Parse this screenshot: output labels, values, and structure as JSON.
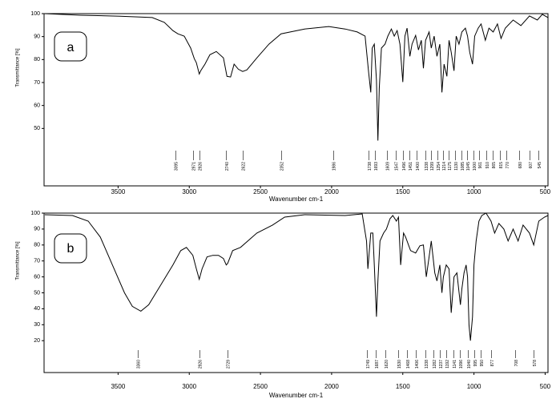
{
  "chart_data": [
    {
      "type": "line",
      "panel_label": "a",
      "x_label": "Wavenumber cm-1",
      "y_label": "Transmittance [%]",
      "color": "#000000",
      "xlim": [
        4020,
        480
      ],
      "xticks": [
        3500,
        3000,
        2500,
        2000,
        1500,
        1000,
        500
      ],
      "ylim": [
        25,
        100
      ],
      "yticks": [
        50,
        60,
        70,
        80,
        90,
        100
      ],
      "x": [
        4015,
        3765,
        3485,
        3260,
        3175,
        3115,
        3080,
        3035,
        2990,
        2965,
        2950,
        2930,
        2920,
        2890,
        2855,
        2810,
        2760,
        2735,
        2710,
        2685,
        2655,
        2625,
        2595,
        2525,
        2440,
        2355,
        2190,
        2020,
        1905,
        1820,
        1765,
        1740,
        1725,
        1715,
        1700,
        1685,
        1675,
        1665,
        1650,
        1625,
        1605,
        1580,
        1560,
        1540,
        1520,
        1500,
        1485,
        1470,
        1450,
        1435,
        1410,
        1390,
        1370,
        1355,
        1340,
        1315,
        1300,
        1280,
        1260,
        1240,
        1225,
        1210,
        1190,
        1175,
        1160,
        1140,
        1125,
        1105,
        1085,
        1060,
        1045,
        1030,
        1010,
        995,
        970,
        950,
        920,
        895,
        865,
        835,
        810,
        780,
        725,
        670,
        610,
        555,
        520,
        480
      ],
      "values": [
        100,
        99.3,
        98.9,
        98.3,
        96.2,
        92.6,
        91.2,
        90.2,
        85,
        80.4,
        78.6,
        73.7,
        75.1,
        78,
        82.1,
        83.5,
        80.7,
        72.7,
        72.4,
        78,
        75.8,
        74.8,
        75.5,
        80.7,
        86.7,
        91.2,
        93.3,
        94.4,
        93.3,
        92,
        90.2,
        74.5,
        65.7,
        85,
        86.7,
        71,
        44.7,
        67.5,
        85,
        86.7,
        90.2,
        93.3,
        90.2,
        92.6,
        86.7,
        70.2,
        90.2,
        93.7,
        81.4,
        86.7,
        90.5,
        84.2,
        88.4,
        76.2,
        88.4,
        92,
        85,
        90.2,
        81.4,
        86.7,
        65.7,
        78,
        72.7,
        88.4,
        83.2,
        75.1,
        90.2,
        86.7,
        92,
        93.7,
        90.2,
        83.2,
        78,
        90.2,
        93.7,
        95.5,
        88.4,
        93.7,
        92,
        95.5,
        89.2,
        93.7,
        97.2,
        94.8,
        99,
        97.2,
        99.7,
        98.3
      ],
      "peaks": [
        3095,
        2971,
        2926,
        2740,
        2622,
        2352,
        1986,
        1738,
        1693,
        1609,
        1547,
        1496,
        1451,
        1400,
        1338,
        1299,
        1254,
        1214,
        1175,
        1130,
        1085,
        1045,
        1000,
        961,
        910,
        865,
        815,
        770,
        680,
        607,
        545
      ]
    },
    {
      "type": "line",
      "panel_label": "b",
      "x_label": "Wavenumber cm-1",
      "y_label": "Transmittance [%]",
      "color": "#000000",
      "xlim": [
        4020,
        480
      ],
      "xticks": [
        3500,
        3000,
        2500,
        2000,
        1500,
        1000,
        500
      ],
      "ylim": [
        0,
        100
      ],
      "yticks": [
        20,
        30,
        40,
        50,
        60,
        70,
        80,
        90,
        100
      ],
      "x": [
        4015,
        3820,
        3710,
        3625,
        3540,
        3455,
        3400,
        3340,
        3285,
        3200,
        3115,
        3060,
        3020,
        2975,
        2950,
        2930,
        2910,
        2875,
        2835,
        2795,
        2760,
        2740,
        2730,
        2695,
        2640,
        2525,
        2415,
        2330,
        2190,
        1905,
        1785,
        1755,
        1745,
        1725,
        1710,
        1700,
        1685,
        1675,
        1660,
        1635,
        1615,
        1590,
        1570,
        1545,
        1530,
        1515,
        1495,
        1480,
        1460,
        1445,
        1410,
        1380,
        1355,
        1335,
        1315,
        1300,
        1275,
        1260,
        1240,
        1225,
        1215,
        1195,
        1175,
        1160,
        1140,
        1120,
        1095,
        1085,
        1070,
        1055,
        1045,
        1035,
        1025,
        1010,
        1000,
        985,
        965,
        945,
        915,
        880,
        855,
        825,
        790,
        760,
        725,
        690,
        655,
        610,
        580,
        545,
        505,
        480
      ],
      "values": [
        99,
        98.5,
        95,
        85,
        67.5,
        50,
        41.5,
        38.5,
        42.5,
        55,
        67.5,
        76.5,
        78.5,
        73.5,
        65,
        58.5,
        65,
        72.5,
        73.5,
        73.5,
        71.5,
        67.5,
        68.5,
        76.5,
        78.5,
        87.5,
        92.5,
        97.5,
        99,
        98.5,
        99.5,
        82.5,
        65,
        87.5,
        87.5,
        67.5,
        35,
        57.5,
        82.5,
        87.5,
        90,
        96.5,
        98.5,
        95,
        97.5,
        67.5,
        87.5,
        85,
        80,
        76.5,
        75,
        79.5,
        80,
        60,
        72.5,
        82.5,
        62.5,
        57.5,
        67.5,
        50,
        60,
        67.5,
        65,
        37.5,
        60,
        62.5,
        42.5,
        52.5,
        62.5,
        67.5,
        60,
        30,
        20,
        35,
        67.5,
        82.5,
        95,
        98.5,
        100,
        95,
        87.5,
        93.5,
        90,
        82.5,
        90,
        82.5,
        92.5,
        87.5,
        80,
        95,
        97.5,
        98.5
      ],
      "peaks": [
        3360,
        2926,
        2729,
        1749,
        1687,
        1620,
        1530,
        1468,
        1406,
        1338,
        1282,
        1237,
        1192,
        1141,
        1096,
        1040,
        995,
        950,
        877,
        708,
        578
      ]
    }
  ]
}
